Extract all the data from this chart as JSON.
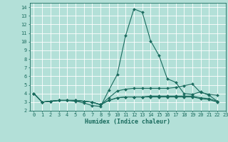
{
  "title": "",
  "xlabel": "Humidex (Indice chaleur)",
  "ylabel": "",
  "bg_color": "#b3e0d8",
  "grid_color": "#ffffff",
  "line_color": "#1a6b5e",
  "marker_color": "#1a6b5e",
  "xlim": [
    -0.5,
    23
  ],
  "ylim": [
    2,
    14.5
  ],
  "xticks": [
    0,
    1,
    2,
    3,
    4,
    5,
    6,
    7,
    8,
    9,
    10,
    11,
    12,
    13,
    14,
    15,
    16,
    17,
    18,
    19,
    20,
    21,
    22,
    23
  ],
  "yticks": [
    2,
    3,
    4,
    5,
    6,
    7,
    8,
    9,
    10,
    11,
    12,
    13,
    14
  ],
  "series": [
    [
      4.0,
      3.0,
      3.1,
      3.2,
      3.2,
      3.1,
      2.9,
      2.6,
      2.5,
      4.4,
      6.2,
      10.7,
      13.8,
      13.4,
      10.1,
      8.4,
      5.7,
      5.3,
      4.0,
      3.9,
      4.2,
      3.8,
      3.1
    ],
    [
      4.0,
      3.0,
      3.1,
      3.2,
      3.2,
      3.2,
      3.1,
      3.0,
      2.7,
      3.5,
      4.3,
      4.5,
      4.6,
      4.6,
      4.6,
      4.6,
      4.6,
      4.7,
      4.9,
      5.1,
      4.1,
      3.9,
      3.8
    ],
    [
      4.0,
      3.0,
      3.1,
      3.2,
      3.2,
      3.2,
      3.1,
      3.0,
      2.7,
      3.2,
      3.5,
      3.6,
      3.6,
      3.6,
      3.7,
      3.7,
      3.7,
      3.7,
      3.7,
      3.7,
      3.5,
      3.4,
      3.1
    ],
    [
      4.0,
      3.0,
      3.1,
      3.2,
      3.2,
      3.2,
      3.1,
      3.0,
      2.7,
      3.2,
      3.5,
      3.6,
      3.6,
      3.6,
      3.6,
      3.6,
      3.6,
      3.6,
      3.6,
      3.6,
      3.4,
      3.3,
      3.0
    ]
  ]
}
